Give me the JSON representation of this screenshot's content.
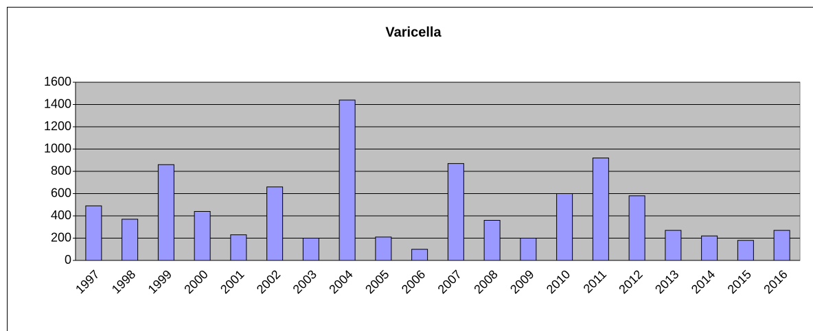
{
  "chart_data": {
    "type": "bar",
    "title": "Varicella",
    "categories": [
      "1997",
      "1998",
      "1999",
      "2000",
      "2001",
      "2002",
      "2003",
      "2004",
      "2005",
      "2006",
      "2007",
      "2008",
      "2009",
      "2010",
      "2011",
      "2012",
      "2013",
      "2014",
      "2015",
      "2016"
    ],
    "values": [
      490,
      370,
      860,
      440,
      230,
      660,
      200,
      1440,
      210,
      100,
      870,
      360,
      200,
      600,
      920,
      580,
      270,
      220,
      180,
      270
    ],
    "color": "#9999ff",
    "ylim": [
      0,
      1600
    ],
    "yticks": [
      0,
      200,
      400,
      600,
      800,
      1000,
      1200,
      1400,
      1600
    ],
    "grid": true
  }
}
